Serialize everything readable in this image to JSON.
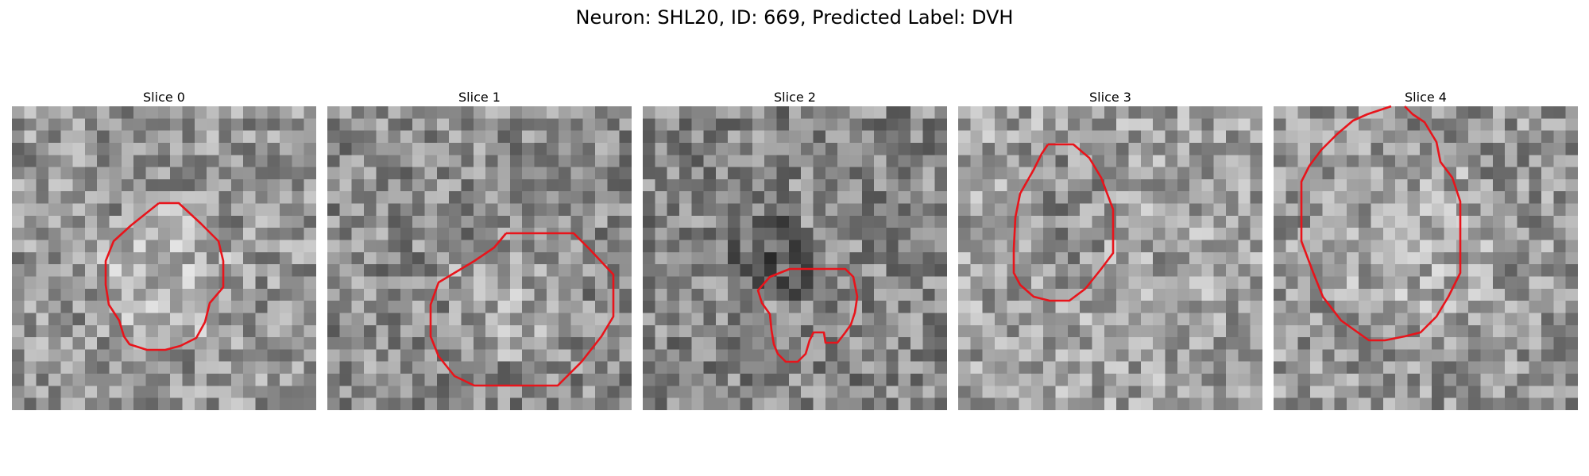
{
  "title": "Neuron: SHL20, ID: 669, Predicted Label: DVH",
  "overlay_color": "#e8141b",
  "slices": [
    {
      "label": "Slice 0"
    },
    {
      "label": "Slice 1"
    },
    {
      "label": "Slice 2"
    },
    {
      "label": "Slice 3"
    },
    {
      "label": "Slice 4"
    }
  ]
}
